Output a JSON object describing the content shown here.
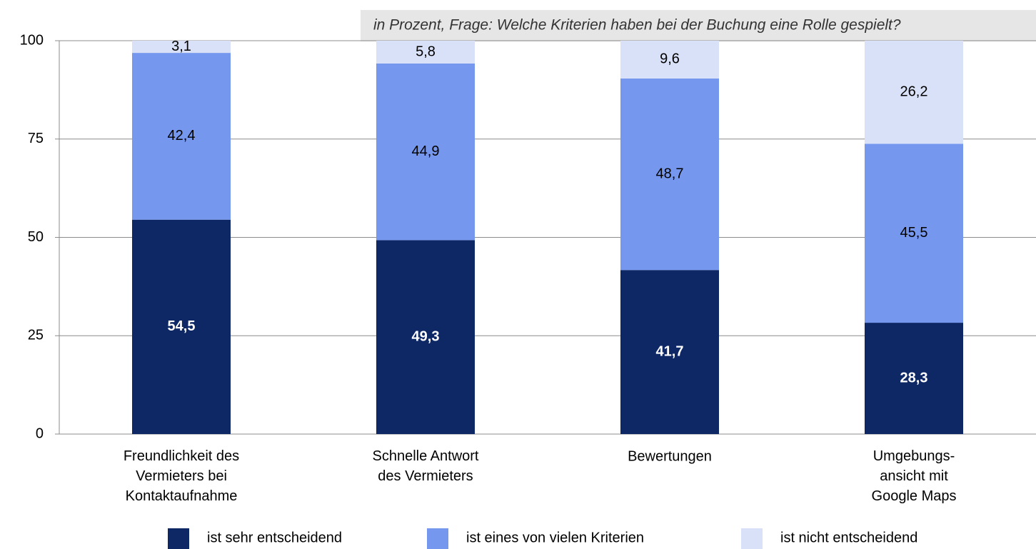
{
  "chart_data": {
    "type": "stacked_bar",
    "title": "in Prozent, Frage: Welche Kriterien haben bei der Buchung eine Rolle gespielt?",
    "categories": [
      "Freundlichkeit des\nVermieters bei\nKontaktaufnahme",
      "Schnelle Antwort\ndes Vermieters",
      "Bewertungen",
      "Umgebungs-\nansicht mit\nGoogle Maps"
    ],
    "series": [
      {
        "name": "ist sehr entscheidend",
        "color": "#0e2866",
        "values": [
          54.5,
          49.3,
          41.7,
          28.3
        ],
        "value_labels": [
          "54,5",
          "49,3",
          "41,7",
          "28,3"
        ]
      },
      {
        "name": "ist eines von vielen Kriterien",
        "color": "#7598ee",
        "values": [
          42.4,
          44.9,
          48.7,
          45.5
        ],
        "value_labels": [
          "42,4",
          "44,9",
          "48,7",
          "45,5"
        ]
      },
      {
        "name": "ist nicht entscheidend",
        "color": "#d9e1f8",
        "values": [
          3.1,
          5.8,
          9.6,
          26.2
        ],
        "value_labels": [
          "3,1",
          "5,8",
          "9,6",
          "26,2"
        ]
      }
    ],
    "ylim": [
      0,
      100
    ],
    "yticks": [
      0,
      25,
      50,
      75,
      100
    ],
    "grid": true,
    "legend": "bottom"
  }
}
